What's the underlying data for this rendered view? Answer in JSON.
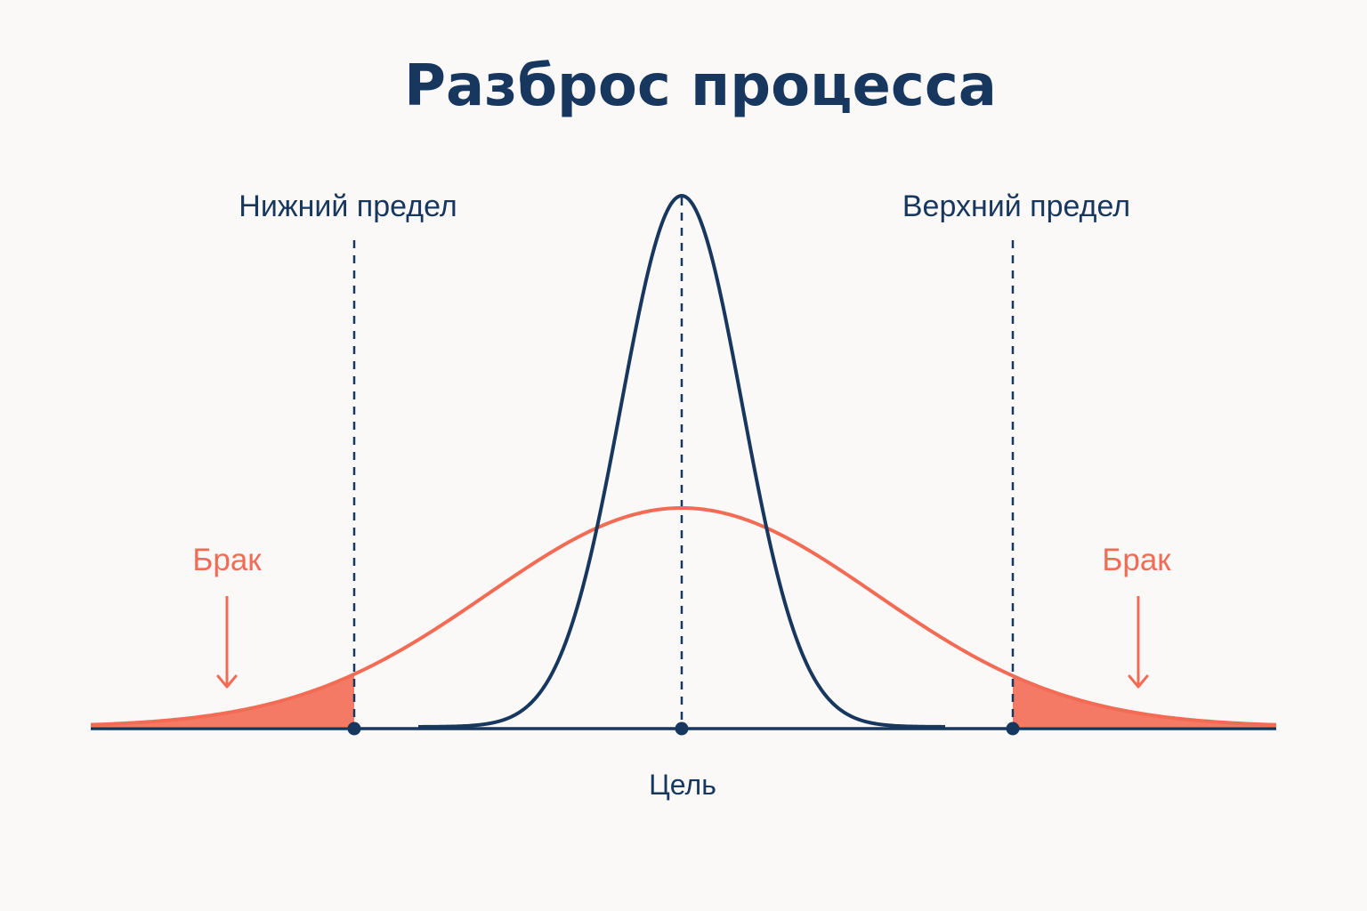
{
  "title": "Разброс процесса",
  "labels": {
    "lower_limit": "Нижний предел",
    "upper_limit": "Верхний предел",
    "target": "Цель",
    "defect_left": "Брак",
    "defect_right": "Брак"
  },
  "colors": {
    "navy": "#17375e",
    "coral": "#f26b55",
    "coral_fill": "#f47a66",
    "background": "#fbf9f8"
  }
}
